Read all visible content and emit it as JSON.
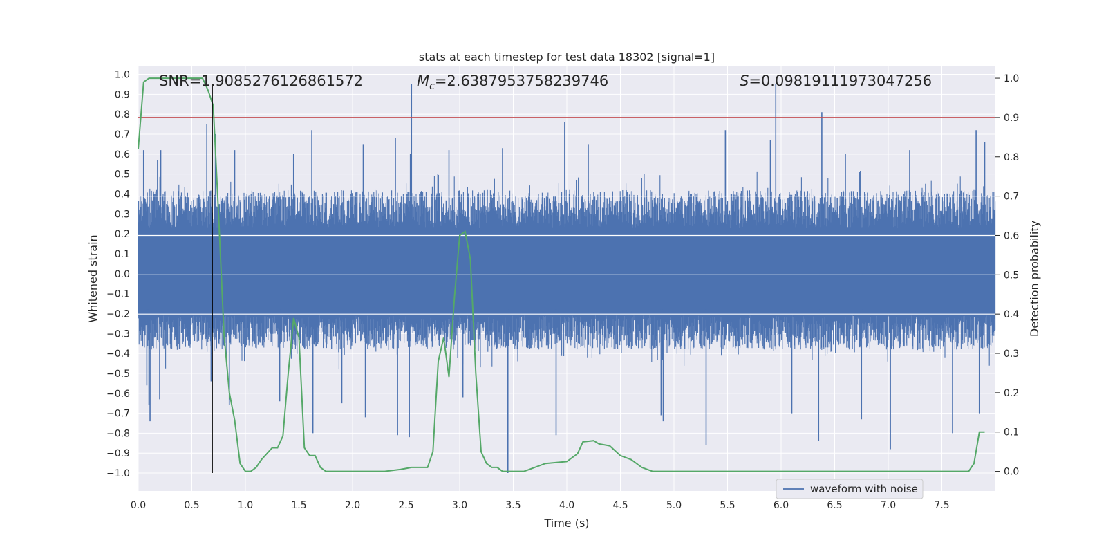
{
  "chart_data": {
    "type": "line",
    "title": "stats at each timestep for test data 18302 [signal=1]",
    "xlabel": "Time (s)",
    "ylabel_left": "Whitened strain",
    "ylabel_right": "Detection probability",
    "xlim": [
      0.0,
      8.0
    ],
    "ylim_left": [
      -1.09,
      1.04
    ],
    "ylim_right": [
      -0.05,
      1.03
    ],
    "xticks": [
      "0.0",
      "0.5",
      "1.0",
      "1.5",
      "2.0",
      "2.5",
      "3.0",
      "3.5",
      "4.0",
      "4.5",
      "5.0",
      "5.5",
      "6.0",
      "6.5",
      "7.0",
      "7.5"
    ],
    "yticks_left": [
      "1.0",
      "0.9",
      "0.8",
      "0.7",
      "0.6",
      "0.5",
      "0.4",
      "0.3",
      "0.2",
      "0.1",
      "0.0",
      "-0.1",
      "-0.2",
      "-0.3",
      "-0.4",
      "-0.5",
      "-0.6",
      "-0.7",
      "-0.8",
      "-0.9",
      "-1.0"
    ],
    "yticks_right": [
      "1.0",
      "0.9",
      "0.8",
      "0.7",
      "0.6",
      "0.5",
      "0.4",
      "0.3",
      "0.2",
      "0.1",
      "0.0"
    ],
    "grid": true,
    "background": "#eaeaf2",
    "annotations": {
      "snr": "SNR=1.9085276126861572",
      "mc_symbol": "M",
      "mc_sub": "c",
      "mc_value": "=2.6387953758239746",
      "s_symbol": "S",
      "s_value": "=0.09819111973047256"
    },
    "legend": {
      "label": "waveform with noise",
      "position": "bottom-right"
    },
    "threshold": {
      "value": 0.9,
      "axis": "right",
      "color": "#c44e52"
    },
    "marker_time": 0.69,
    "series": [
      {
        "name": "waveform with noise",
        "axis": "left",
        "color": "#4c72b0",
        "band": [
          -0.38,
          0.42
        ],
        "spikes": [
          {
            "x": 0.05,
            "y": 0.62
          },
          {
            "x": 0.08,
            "y": -0.56
          },
          {
            "x": 0.1,
            "y": -0.66
          },
          {
            "x": 0.11,
            "y": -0.74
          },
          {
            "x": 0.18,
            "y": 0.57
          },
          {
            "x": 0.21,
            "y": 0.62
          },
          {
            "x": 0.2,
            "y": -0.63
          },
          {
            "x": 0.64,
            "y": 0.75
          },
          {
            "x": 0.68,
            "y": -0.54
          },
          {
            "x": 0.72,
            "y": 0.7
          },
          {
            "x": 0.85,
            "y": -0.66
          },
          {
            "x": 0.9,
            "y": 0.62
          },
          {
            "x": 1.32,
            "y": -0.64
          },
          {
            "x": 1.45,
            "y": 0.6
          },
          {
            "x": 1.62,
            "y": 0.72
          },
          {
            "x": 1.63,
            "y": -0.8
          },
          {
            "x": 1.9,
            "y": -0.65
          },
          {
            "x": 2.1,
            "y": 0.65
          },
          {
            "x": 2.12,
            "y": -0.72
          },
          {
            "x": 2.4,
            "y": 0.68
          },
          {
            "x": 2.42,
            "y": -0.81
          },
          {
            "x": 2.53,
            "y": -0.82
          },
          {
            "x": 2.54,
            "y": 0.6
          },
          {
            "x": 2.55,
            "y": 0.95
          },
          {
            "x": 2.9,
            "y": 0.62
          },
          {
            "x": 3.03,
            "y": -0.62
          },
          {
            "x": 3.45,
            "y": -1.0
          },
          {
            "x": 3.4,
            "y": 0.63
          },
          {
            "x": 3.9,
            "y": -0.81
          },
          {
            "x": 3.98,
            "y": 0.76
          },
          {
            "x": 4.2,
            "y": 0.65
          },
          {
            "x": 4.88,
            "y": -0.71
          },
          {
            "x": 4.9,
            "y": -0.74
          },
          {
            "x": 5.3,
            "y": -0.86
          },
          {
            "x": 5.48,
            "y": 0.72
          },
          {
            "x": 5.9,
            "y": 0.67
          },
          {
            "x": 5.95,
            "y": 0.95
          },
          {
            "x": 6.1,
            "y": -0.7
          },
          {
            "x": 6.38,
            "y": 0.81
          },
          {
            "x": 6.35,
            "y": -0.84
          },
          {
            "x": 6.6,
            "y": 0.6
          },
          {
            "x": 6.75,
            "y": -0.73
          },
          {
            "x": 7.02,
            "y": -0.88
          },
          {
            "x": 7.2,
            "y": 0.62
          },
          {
            "x": 7.6,
            "y": -0.8
          },
          {
            "x": 7.82,
            "y": 0.72
          },
          {
            "x": 7.9,
            "y": 0.66
          },
          {
            "x": 7.85,
            "y": -0.7
          }
        ]
      },
      {
        "name": "detection probability",
        "axis": "right",
        "color": "#55a868",
        "x": [
          0.0,
          0.05,
          0.1,
          0.15,
          0.2,
          0.3,
          0.45,
          0.6,
          0.65,
          0.7,
          0.75,
          0.8,
          0.85,
          0.9,
          0.95,
          1.0,
          1.05,
          1.1,
          1.15,
          1.25,
          1.3,
          1.35,
          1.4,
          1.45,
          1.5,
          1.55,
          1.6,
          1.65,
          1.7,
          1.75,
          1.8,
          1.9,
          2.1,
          2.3,
          2.45,
          2.55,
          2.6,
          2.65,
          2.7,
          2.75,
          2.8,
          2.85,
          2.9,
          2.95,
          3.0,
          3.05,
          3.1,
          3.15,
          3.2,
          3.25,
          3.3,
          3.35,
          3.4,
          3.5,
          3.6,
          3.8,
          4.0,
          4.1,
          4.15,
          4.25,
          4.3,
          4.4,
          4.5,
          4.6,
          4.7,
          4.8,
          4.9,
          5.0,
          5.2,
          5.5,
          6.0,
          6.5,
          7.0,
          7.5,
          7.75,
          7.8,
          7.85,
          7.9
        ],
        "y": [
          0.82,
          0.99,
          1.0,
          1.0,
          1.0,
          1.0,
          1.0,
          1.0,
          0.97,
          0.93,
          0.65,
          0.35,
          0.2,
          0.13,
          0.02,
          0.0,
          0.0,
          0.01,
          0.03,
          0.06,
          0.06,
          0.09,
          0.25,
          0.39,
          0.34,
          0.06,
          0.04,
          0.04,
          0.01,
          0.0,
          0.0,
          0.0,
          0.0,
          0.0,
          0.005,
          0.01,
          0.01,
          0.01,
          0.01,
          0.05,
          0.28,
          0.34,
          0.24,
          0.44,
          0.6,
          0.61,
          0.54,
          0.25,
          0.05,
          0.02,
          0.01,
          0.01,
          0.0,
          0.0,
          0.0,
          0.02,
          0.025,
          0.045,
          0.075,
          0.078,
          0.07,
          0.065,
          0.04,
          0.03,
          0.01,
          0.0,
          0.0,
          0.0,
          0.0,
          0.0,
          0.0,
          0.0,
          0.0,
          0.0,
          0.0,
          0.02,
          0.1,
          0.1
        ]
      }
    ]
  }
}
